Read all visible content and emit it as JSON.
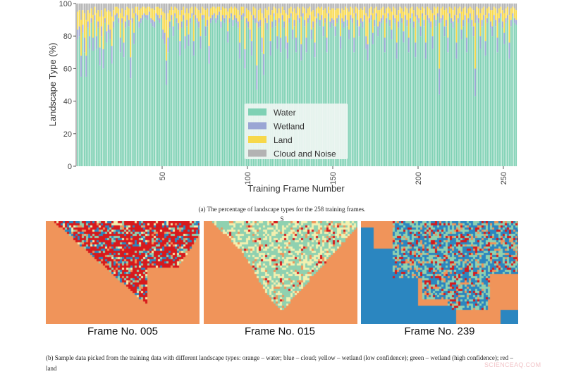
{
  "chart_data": {
    "type": "bar",
    "stacked": true,
    "title": "",
    "xlabel": "Training Frame Number",
    "ylabel": "Landscape Type (%)",
    "ylim": [
      0,
      100
    ],
    "xlim": [
      1,
      258
    ],
    "yticks": [
      "0",
      "20",
      "40",
      "60",
      "80",
      "100"
    ],
    "xticks": [
      "50",
      "100",
      "150",
      "200",
      "250"
    ],
    "legend_position": "bottom-center",
    "series": [
      {
        "name": "Water",
        "color": "#7fd1b4",
        "values": [
          78,
          80,
          55,
          82,
          70,
          55,
          85,
          72,
          88,
          71,
          90,
          72,
          85,
          62,
          80,
          60,
          88,
          76,
          82,
          78,
          63,
          85,
          90,
          92,
          88,
          70,
          88,
          67,
          85,
          90,
          86,
          54,
          88,
          75,
          92,
          90,
          85,
          88,
          90,
          92,
          91,
          90,
          93,
          88,
          86,
          85,
          92,
          90,
          88,
          91,
          78,
          75,
          50,
          70,
          85,
          90,
          80,
          92,
          88,
          84,
          68,
          85,
          90,
          72,
          86,
          74,
          88,
          92,
          68,
          90,
          88,
          85,
          72,
          90,
          91,
          80,
          86,
          63,
          88,
          90,
          92,
          88,
          90,
          93,
          85,
          90,
          88,
          91,
          76,
          88,
          92,
          86,
          90,
          88,
          85,
          66,
          90,
          92,
          60,
          88,
          85,
          78,
          68,
          90,
          88,
          47,
          85,
          86,
          70,
          56,
          88,
          84,
          90,
          68,
          85,
          92,
          86,
          72,
          88,
          70,
          90,
          85,
          72,
          66,
          88,
          92,
          78,
          86,
          70,
          90,
          88,
          65,
          92,
          86,
          70,
          88,
          90,
          78,
          85,
          67,
          88,
          92,
          86,
          90,
          80,
          88,
          70,
          92,
          85,
          88,
          86,
          80,
          88,
          91,
          72,
          88,
          85,
          90,
          86,
          78,
          90,
          88,
          70,
          92,
          86,
          80,
          88,
          85,
          90,
          72,
          65,
          88,
          90,
          75,
          86,
          92,
          80,
          85,
          88,
          90,
          70,
          88,
          92,
          86,
          78,
          90,
          88,
          66,
          85,
          92,
          88,
          76,
          90,
          86,
          70,
          88,
          92,
          85,
          67,
          90,
          88,
          80,
          92,
          86,
          66,
          90,
          88,
          85,
          72,
          90,
          86,
          92,
          44,
          88,
          90,
          80,
          86,
          70,
          92,
          88,
          85,
          90,
          66,
          88,
          92,
          78,
          86,
          90,
          70,
          88,
          92,
          86,
          80,
          43,
          90,
          88,
          72,
          86,
          90,
          68,
          88,
          92,
          85,
          80,
          90,
          86,
          70,
          88,
          92,
          85,
          75,
          88,
          90,
          66,
          86,
          92,
          88,
          87
        ]
      },
      {
        "name": "Wetland",
        "color": "#9aa6d4",
        "values": [
          6,
          6,
          13,
          5,
          9,
          13,
          4,
          8,
          3,
          8,
          3,
          8,
          4,
          11,
          6,
          12,
          3,
          7,
          5,
          6,
          11,
          4,
          3,
          2,
          3,
          9,
          3,
          9,
          4,
          3,
          4,
          13,
          3,
          7,
          2,
          3,
          4,
          3,
          3,
          2,
          2,
          3,
          2,
          3,
          4,
          4,
          2,
          3,
          3,
          2,
          6,
          7,
          15,
          9,
          4,
          3,
          6,
          2,
          3,
          4,
          9,
          4,
          3,
          8,
          4,
          7,
          3,
          2,
          9,
          3,
          3,
          4,
          8,
          3,
          2,
          6,
          4,
          11,
          3,
          3,
          2,
          3,
          3,
          2,
          4,
          3,
          3,
          2,
          7,
          3,
          2,
          4,
          3,
          3,
          4,
          10,
          3,
          2,
          12,
          3,
          4,
          6,
          9,
          3,
          3,
          15,
          4,
          4,
          9,
          13,
          3,
          4,
          3,
          9,
          4,
          2,
          4,
          8,
          3,
          9,
          3,
          4,
          8,
          10,
          3,
          2,
          6,
          4,
          9,
          3,
          3,
          10,
          2,
          4,
          9,
          3,
          3,
          6,
          4,
          9,
          3,
          2,
          4,
          3,
          6,
          3,
          9,
          2,
          4,
          3,
          4,
          6,
          3,
          2,
          8,
          3,
          4,
          3,
          4,
          6,
          3,
          3,
          9,
          2,
          4,
          6,
          3,
          4,
          3,
          8,
          10,
          3,
          3,
          7,
          4,
          2,
          6,
          4,
          3,
          3,
          9,
          3,
          2,
          4,
          6,
          3,
          3,
          10,
          4,
          2,
          3,
          7,
          3,
          4,
          9,
          3,
          2,
          4,
          9,
          3,
          3,
          6,
          2,
          4,
          10,
          3,
          3,
          4,
          8,
          3,
          4,
          2,
          16,
          3,
          3,
          6,
          4,
          9,
          2,
          3,
          4,
          3,
          10,
          3,
          2,
          6,
          4,
          3,
          9,
          3,
          2,
          4,
          6,
          17,
          3,
          3,
          8,
          4,
          3,
          9,
          3,
          2,
          4,
          6,
          3,
          4,
          9,
          3,
          2,
          4,
          7,
          3,
          3,
          10,
          4,
          2,
          3,
          3
        ]
      },
      {
        "name": "Land",
        "color": "#f7d84a",
        "values": [
          11,
          10,
          22,
          9,
          15,
          22,
          7,
          14,
          6,
          14,
          5,
          14,
          7,
          19,
          10,
          20,
          6,
          12,
          9,
          11,
          18,
          7,
          5,
          4,
          6,
          15,
          6,
          16,
          7,
          5,
          7,
          23,
          6,
          12,
          4,
          5,
          7,
          6,
          5,
          4,
          4,
          5,
          3,
          6,
          7,
          7,
          4,
          5,
          6,
          4,
          11,
          12,
          25,
          15,
          7,
          5,
          10,
          4,
          6,
          8,
          16,
          7,
          5,
          14,
          7,
          13,
          6,
          4,
          16,
          5,
          6,
          7,
          14,
          5,
          4,
          10,
          7,
          18,
          6,
          5,
          4,
          6,
          5,
          3,
          7,
          5,
          6,
          4,
          12,
          6,
          4,
          7,
          5,
          6,
          7,
          17,
          5,
          4,
          20,
          6,
          7,
          11,
          16,
          5,
          6,
          26,
          7,
          7,
          15,
          22,
          6,
          8,
          5,
          16,
          7,
          4,
          7,
          14,
          6,
          15,
          5,
          7,
          14,
          17,
          6,
          4,
          11,
          7,
          15,
          5,
          6,
          17,
          4,
          7,
          15,
          6,
          5,
          11,
          7,
          16,
          6,
          4,
          7,
          5,
          10,
          6,
          15,
          4,
          7,
          6,
          7,
          10,
          6,
          4,
          14,
          6,
          7,
          5,
          7,
          11,
          5,
          6,
          15,
          4,
          7,
          10,
          6,
          7,
          5,
          14,
          17,
          6,
          5,
          12,
          7,
          4,
          10,
          7,
          6,
          5,
          15,
          6,
          4,
          7,
          11,
          5,
          6,
          17,
          7,
          4,
          6,
          12,
          5,
          7,
          15,
          6,
          4,
          7,
          16,
          5,
          6,
          10,
          4,
          7,
          17,
          5,
          6,
          7,
          14,
          5,
          7,
          4,
          28,
          6,
          5,
          10,
          7,
          15,
          4,
          6,
          7,
          5,
          17,
          6,
          4,
          11,
          7,
          5,
          15,
          6,
          4,
          7,
          10,
          28,
          5,
          6,
          14,
          7,
          5,
          16,
          6,
          4,
          7,
          10,
          5,
          7,
          15,
          6,
          4,
          7,
          12,
          6,
          5,
          17,
          7,
          4,
          6,
          6
        ]
      },
      {
        "name": "Cloud and Noise",
        "color": "#b3b3b3",
        "values": [
          5,
          4,
          10,
          4,
          6,
          10,
          4,
          6,
          3,
          7,
          2,
          6,
          4,
          8,
          4,
          8,
          3,
          5,
          4,
          5,
          8,
          4,
          2,
          2,
          3,
          6,
          3,
          8,
          4,
          2,
          3,
          10,
          3,
          6,
          2,
          2,
          4,
          3,
          2,
          2,
          3,
          2,
          2,
          3,
          3,
          4,
          2,
          2,
          3,
          3,
          5,
          6,
          10,
          6,
          4,
          2,
          4,
          2,
          3,
          4,
          7,
          4,
          2,
          6,
          3,
          6,
          3,
          2,
          7,
          2,
          3,
          4,
          6,
          2,
          3,
          4,
          3,
          8,
          3,
          2,
          2,
          3,
          2,
          2,
          4,
          2,
          3,
          3,
          5,
          3,
          2,
          3,
          2,
          3,
          4,
          7,
          2,
          2,
          8,
          3,
          4,
          5,
          7,
          2,
          3,
          12,
          4,
          3,
          6,
          9,
          3,
          4,
          2,
          7,
          4,
          2,
          3,
          6,
          3,
          6,
          2,
          4,
          6,
          7,
          3,
          2,
          5,
          3,
          6,
          2,
          3,
          8,
          2,
          3,
          6,
          3,
          2,
          5,
          4,
          8,
          3,
          2,
          3,
          2,
          4,
          3,
          6,
          2,
          4,
          3,
          3,
          4,
          3,
          3,
          6,
          3,
          4,
          2,
          3,
          5,
          2,
          3,
          6,
          2,
          3,
          4,
          3,
          4,
          2,
          6,
          8,
          3,
          2,
          6,
          3,
          2,
          4,
          4,
          3,
          2,
          6,
          3,
          2,
          3,
          5,
          2,
          3,
          7,
          4,
          2,
          3,
          5,
          2,
          3,
          6,
          3,
          2,
          4,
          8,
          2,
          3,
          4,
          2,
          3,
          7,
          2,
          3,
          4,
          6,
          2,
          3,
          2,
          12,
          3,
          2,
          4,
          3,
          6,
          2,
          3,
          4,
          2,
          7,
          3,
          2,
          5,
          3,
          2,
          6,
          3,
          2,
          3,
          4,
          12,
          2,
          3,
          6,
          3,
          2,
          7,
          3,
          2,
          4,
          4,
          2,
          3,
          6,
          3,
          2,
          4,
          6,
          3,
          2,
          7,
          3,
          2,
          3,
          4
        ]
      }
    ]
  },
  "captions": {
    "a": "(a) The percentage of landscape types for the 258 training frames.",
    "stray": "S",
    "b": "(b) Sample data picked from the training data with different landscape types: orange – water; blue – cloud; yellow – wetland (low confidence); green – wetland (high confidence); red – land"
  },
  "frames": [
    {
      "label": "Frame No. 005"
    },
    {
      "label": "Frame No. 015"
    },
    {
      "label": "Frame No. 239"
    }
  ],
  "map_colors": {
    "water": "#f0945a",
    "cloud": "#2b86c0",
    "wetland_low": "#f2f0b0",
    "wetland_high": "#8fd1b0",
    "land": "#d7191c"
  },
  "watermark": "SCIENCEAQ.COM"
}
